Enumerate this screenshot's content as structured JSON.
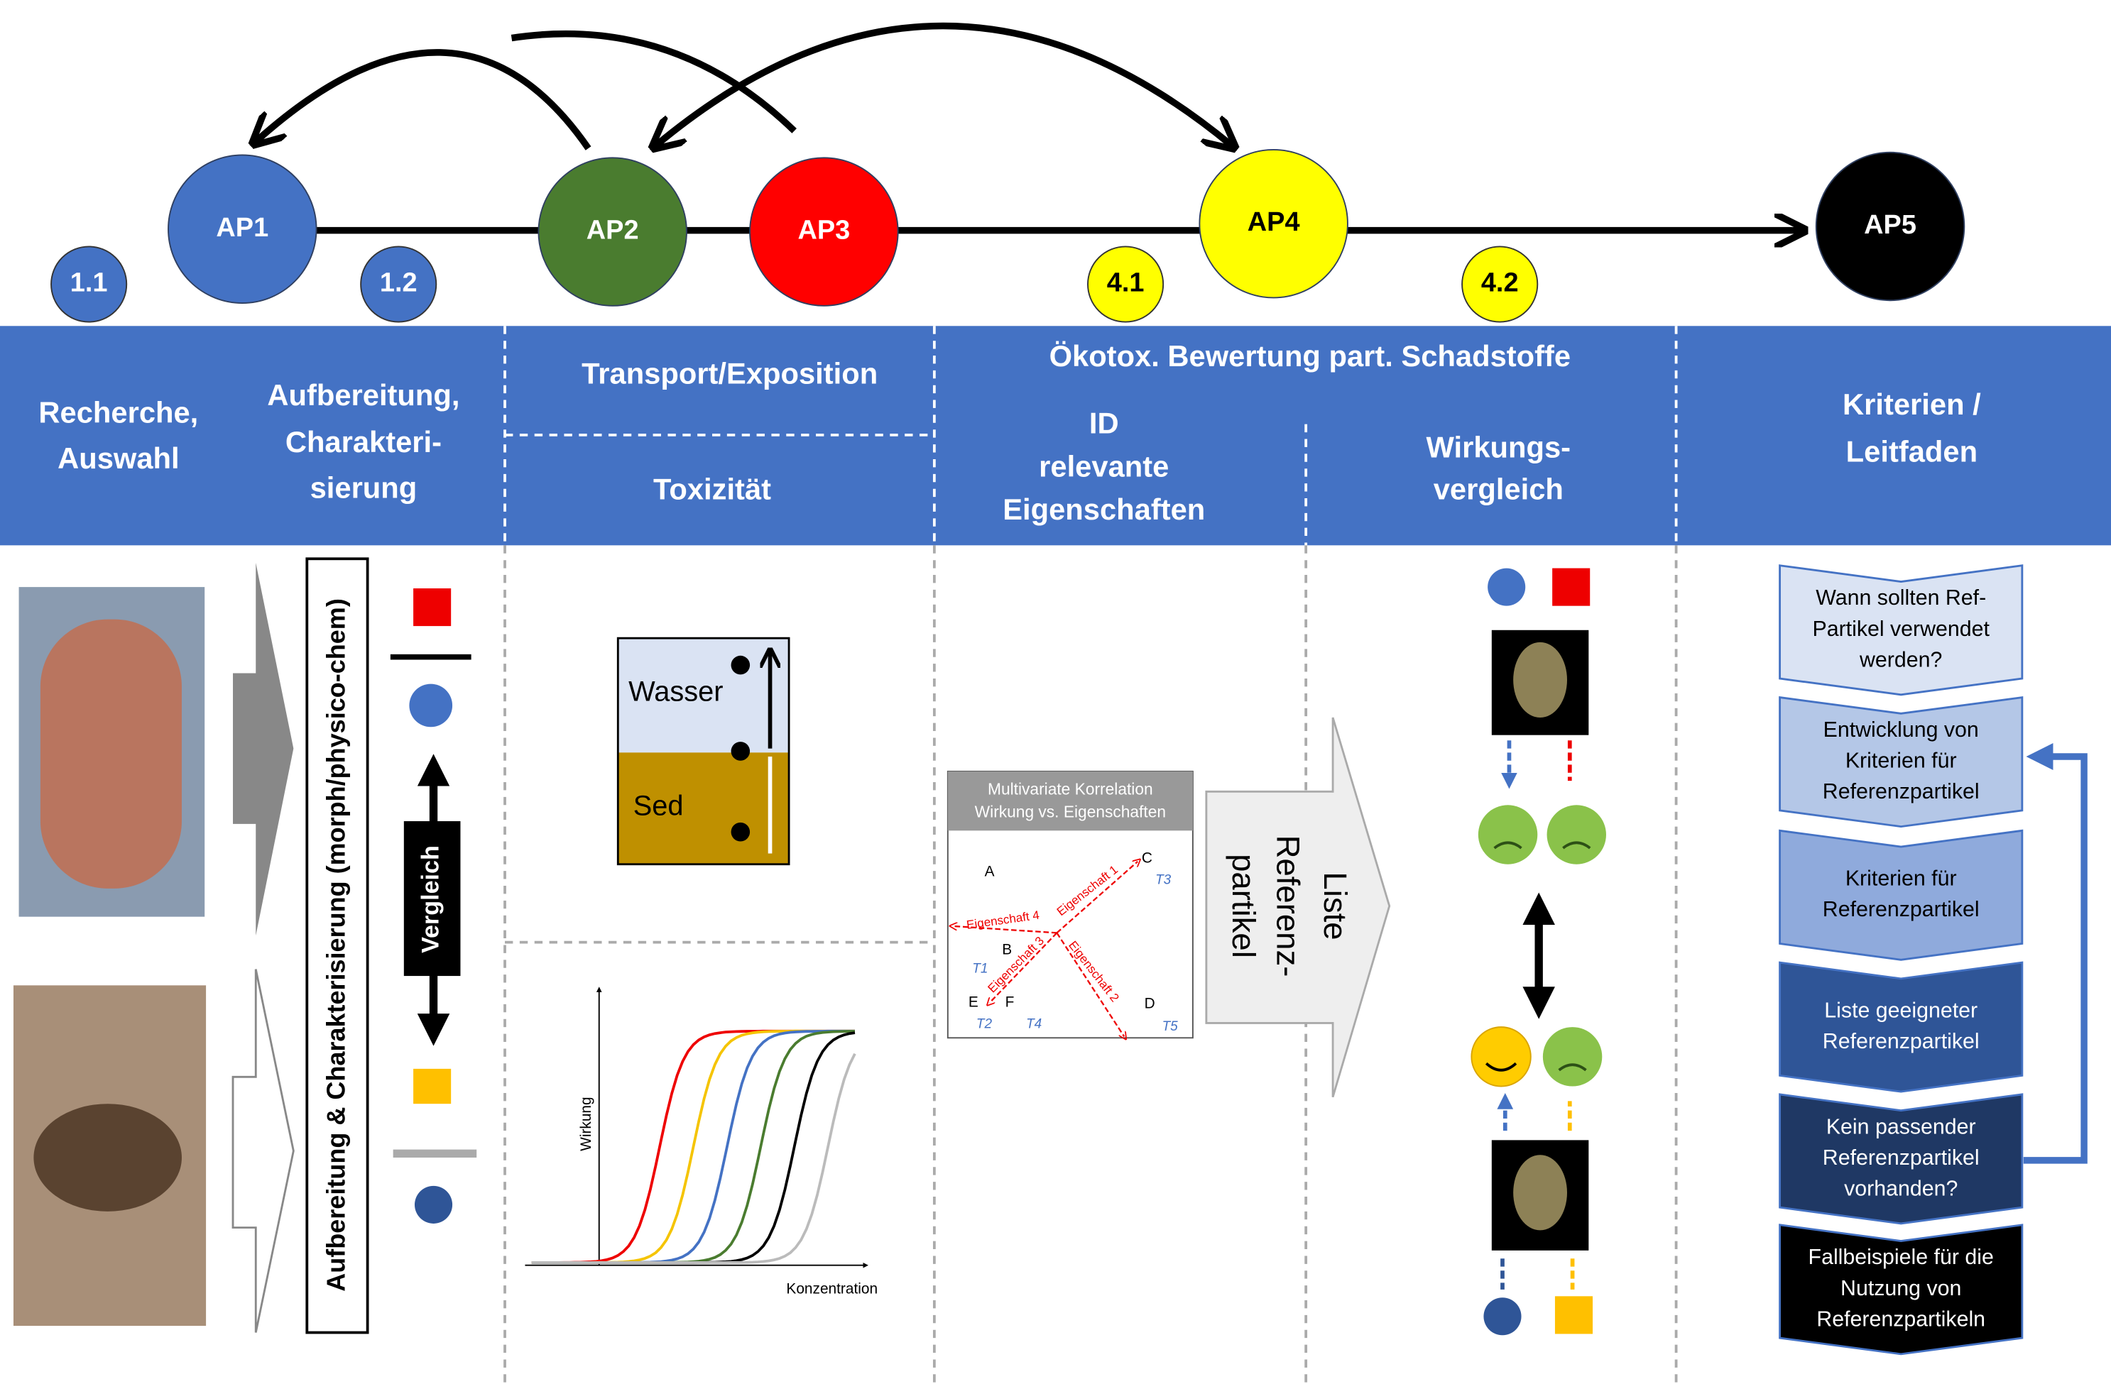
{
  "work_packages": [
    "AP1",
    "AP2",
    "AP3",
    "AP4",
    "AP5"
  ],
  "sub_packages": [
    "1.1",
    "1.2",
    "4.1",
    "4.2"
  ],
  "header": {
    "col1": [
      "Recherche,",
      "Auswahl"
    ],
    "col2": [
      "Aufbereitung,",
      "Charakteri-",
      "sierung"
    ],
    "col3_top": "Transport/Exposition",
    "col3_bottom": "Toxizität",
    "col4_title": "Ökotox. Bewertung part. Schadstoffe",
    "col4_left": [
      "ID",
      "relevante",
      "Eigenschaften"
    ],
    "col4_right": [
      "Wirkungs-",
      "vergleich"
    ],
    "col5": [
      "Kriterien /",
      "Leitfaden"
    ]
  },
  "characterization": {
    "label": "Aufbereitung & Charakterisierung (morph/physico-chem)",
    "comparison": "Vergleich"
  },
  "transport": {
    "water": "Wasser",
    "sediment": "Sed"
  },
  "toxicity": {
    "y_label": "Wirkung",
    "x_label": "Konzentration"
  },
  "correlation": {
    "title": [
      "Multivariate Korrelation",
      "Wirkung vs. Eigenschaften"
    ],
    "points": [
      "A",
      "B",
      "C",
      "D",
      "E",
      "F"
    ],
    "tests": [
      "T1",
      "T2",
      "T3",
      "T4",
      "T5"
    ],
    "properties": [
      "Eigenschaft 1",
      "Eigenschaft 2",
      "Eigenschaft 3",
      "Eigenschaft 4"
    ]
  },
  "result": [
    "Liste",
    "Referenz-",
    "partikel"
  ],
  "guide": [
    [
      "Wann sollten Ref-",
      "Partikel verwendet",
      "werden?"
    ],
    [
      "Entwicklung von",
      "Kriterien für",
      "Referenzpartikel"
    ],
    [
      "Kriterien für",
      "Referenzpartikel"
    ],
    [
      "Liste geeigneter",
      "Referenzpartikel"
    ],
    [
      "Kein passender",
      "Referenzpartikel",
      "vorhanden?"
    ],
    [
      "Fallbeispiele für die",
      "Nutzung von",
      "Referenzpartikeln"
    ]
  ]
}
